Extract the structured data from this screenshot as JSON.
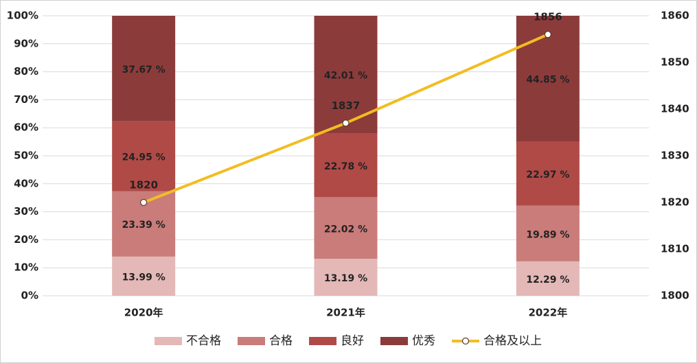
{
  "chart_data": {
    "type": "bar",
    "stacked": true,
    "categories": [
      "2020年",
      "2021年",
      "2022年"
    ],
    "series": [
      {
        "name": "不合格",
        "color": "#e3b8b7",
        "values": [
          13.99,
          13.19,
          12.29
        ],
        "value_labels": [
          "13.99 %",
          "13.19 %",
          "12.29 %"
        ]
      },
      {
        "name": "合格",
        "color": "#c97c79",
        "values": [
          23.39,
          22.02,
          19.89
        ],
        "value_labels": [
          "23.39 %",
          "22.02 %",
          "19.89 %"
        ]
      },
      {
        "name": "良好",
        "color": "#b04a47",
        "values": [
          24.95,
          22.78,
          22.97
        ],
        "value_labels": [
          "24.95 %",
          "22.78 %",
          "22.97 %"
        ]
      },
      {
        "name": "优秀",
        "color": "#8c3b3b",
        "values": [
          37.67,
          42.01,
          44.85
        ],
        "value_labels": [
          "37.67 %",
          "42.01 %",
          "44.85 %"
        ]
      },
      {
        "name": "合格及以上",
        "type": "line",
        "axis": "y2",
        "color": "#f2bd22",
        "values": [
          1820,
          1837,
          1856
        ]
      }
    ],
    "ylim": [
      0,
      100
    ],
    "yticks": [
      {
        "value": 0,
        "label": "0%"
      },
      {
        "value": 10,
        "label": "10%"
      },
      {
        "value": 20,
        "label": "20%"
      },
      {
        "value": 30,
        "label": "30%"
      },
      {
        "value": 40,
        "label": "40%"
      },
      {
        "value": 50,
        "label": "50%"
      },
      {
        "value": 60,
        "label": "60%"
      },
      {
        "value": 70,
        "label": "70%"
      },
      {
        "value": 80,
        "label": "80%"
      },
      {
        "value": 90,
        "label": "90%"
      },
      {
        "value": 100,
        "label": "100%"
      }
    ],
    "y2lim": [
      1800,
      1860
    ],
    "y2ticks": [
      1800,
      1810,
      1820,
      1830,
      1840,
      1850,
      1860
    ],
    "grid": true,
    "legend": "bottom"
  }
}
